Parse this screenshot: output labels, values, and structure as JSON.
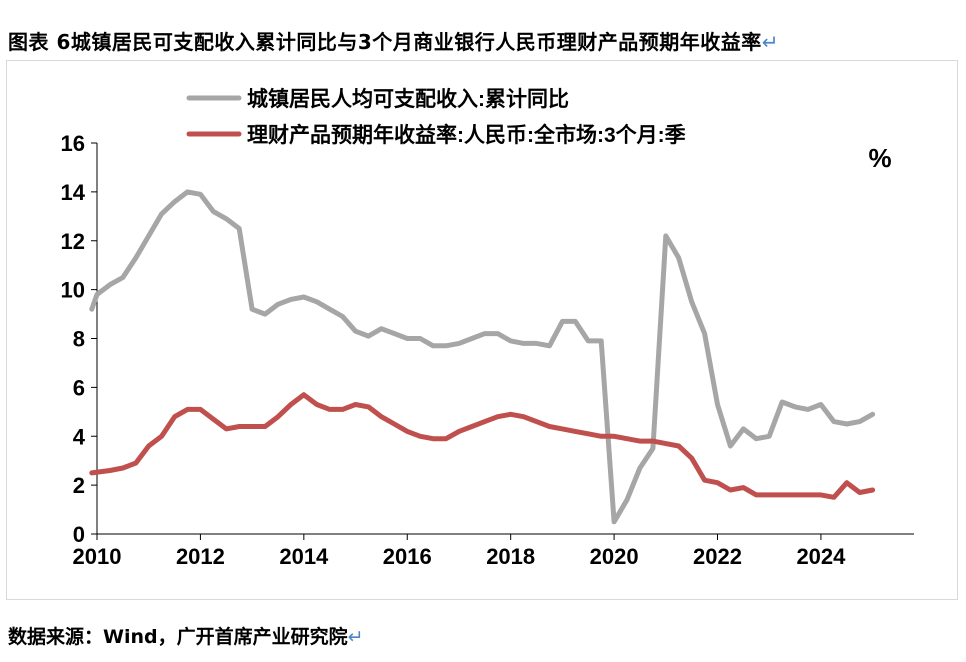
{
  "figure": {
    "title": "图表 6城镇居民可支配收入累计同比与3个月商业银行人民币理财产品预期年收益率",
    "source": "数据来源：Wind，广开首席产业研究院",
    "return_mark": "↵"
  },
  "chart_data": {
    "type": "line",
    "unit_label": "%",
    "xlim": [
      2010,
      2025.8
    ],
    "ylim": [
      0,
      16
    ],
    "x_ticks": [
      "2010",
      "2012",
      "2014",
      "2016",
      "2018",
      "2020",
      "2022",
      "2024"
    ],
    "y_ticks": [
      "0",
      "2",
      "4",
      "6",
      "8",
      "10",
      "12",
      "14",
      "16"
    ],
    "grid": false,
    "legend_position": "top-left",
    "series": [
      {
        "name": "城镇居民人均可支配收入:累计同比",
        "color": "#a6a6a6",
        "x": [
          2009.9,
          2010.0,
          2010.25,
          2010.5,
          2010.75,
          2011.0,
          2011.25,
          2011.5,
          2011.75,
          2012.0,
          2012.25,
          2012.5,
          2012.75,
          2013.0,
          2013.25,
          2013.5,
          2013.75,
          2014.0,
          2014.25,
          2014.5,
          2014.75,
          2015.0,
          2015.25,
          2015.5,
          2015.75,
          2016.0,
          2016.25,
          2016.5,
          2016.75,
          2017.0,
          2017.25,
          2017.5,
          2017.75,
          2018.0,
          2018.25,
          2018.5,
          2018.75,
          2019.0,
          2019.25,
          2019.5,
          2019.75,
          2020.0,
          2020.25,
          2020.5,
          2020.75,
          2021.0,
          2021.25,
          2021.5,
          2021.75,
          2022.0,
          2022.25,
          2022.5,
          2022.75,
          2023.0,
          2023.25,
          2023.5,
          2023.75,
          2024.0,
          2024.25,
          2024.5,
          2024.75,
          2025.0
        ],
        "values": [
          9.2,
          9.8,
          10.2,
          10.5,
          11.3,
          12.2,
          13.1,
          13.6,
          14.0,
          13.9,
          13.2,
          12.9,
          12.5,
          9.2,
          9.0,
          9.4,
          9.6,
          9.7,
          9.5,
          9.2,
          8.9,
          8.3,
          8.1,
          8.4,
          8.2,
          8.0,
          8.0,
          7.7,
          7.7,
          7.8,
          8.0,
          8.2,
          8.2,
          7.9,
          7.8,
          7.8,
          7.7,
          8.7,
          8.7,
          7.9,
          7.9,
          0.5,
          1.4,
          2.7,
          3.5,
          12.2,
          11.3,
          9.5,
          8.2,
          5.3,
          3.6,
          4.3,
          3.9,
          4.0,
          5.4,
          5.2,
          5.1,
          5.3,
          4.6,
          4.5,
          4.6,
          4.9
        ]
      },
      {
        "name": "理财产品预期年收益率:人民币:全市场:3个月:季",
        "color": "#c0504d",
        "x": [
          2009.9,
          2010.25,
          2010.5,
          2010.75,
          2011.0,
          2011.25,
          2011.5,
          2011.75,
          2012.0,
          2012.25,
          2012.5,
          2012.75,
          2013.0,
          2013.25,
          2013.5,
          2013.75,
          2014.0,
          2014.25,
          2014.5,
          2014.75,
          2015.0,
          2015.25,
          2015.5,
          2015.75,
          2016.0,
          2016.25,
          2016.5,
          2016.75,
          2017.0,
          2017.25,
          2017.5,
          2017.75,
          2018.0,
          2018.25,
          2018.5,
          2018.75,
          2019.0,
          2019.25,
          2019.5,
          2019.75,
          2020.0,
          2020.25,
          2020.5,
          2020.75,
          2021.0,
          2021.25,
          2021.5,
          2021.75,
          2022.0,
          2022.25,
          2022.5,
          2022.75,
          2023.0,
          2023.25,
          2023.5,
          2023.75,
          2024.0,
          2024.25,
          2024.5,
          2024.75,
          2025.0
        ],
        "values": [
          2.5,
          2.6,
          2.7,
          2.9,
          3.6,
          4.0,
          4.8,
          5.1,
          5.1,
          4.7,
          4.3,
          4.4,
          4.4,
          4.4,
          4.8,
          5.3,
          5.7,
          5.3,
          5.1,
          5.1,
          5.3,
          5.2,
          4.8,
          4.5,
          4.2,
          4.0,
          3.9,
          3.9,
          4.2,
          4.4,
          4.6,
          4.8,
          4.9,
          4.8,
          4.6,
          4.4,
          4.3,
          4.2,
          4.1,
          4.0,
          4.0,
          3.9,
          3.8,
          3.8,
          3.7,
          3.6,
          3.1,
          2.2,
          2.1,
          1.8,
          1.9,
          1.6,
          1.6,
          1.6,
          1.6,
          1.6,
          1.6,
          1.5,
          2.1,
          1.7,
          1.8
        ]
      }
    ]
  }
}
